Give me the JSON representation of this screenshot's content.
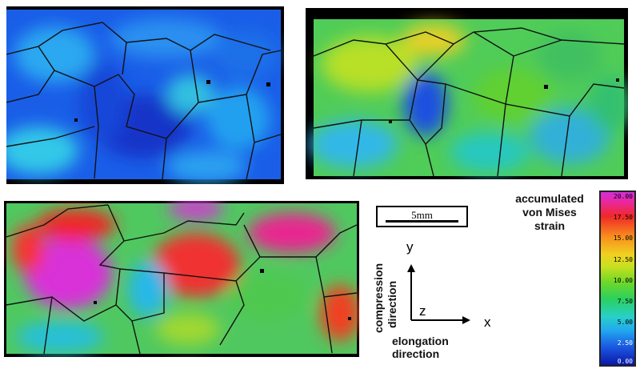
{
  "scale_bar": {
    "label": "5mm"
  },
  "axes": {
    "y_label": "y",
    "z_label": "z",
    "x_label": "x",
    "compression_line1": "compression",
    "compression_line2": "direction",
    "elongation_line1": "elongation",
    "elongation_line2": "direction"
  },
  "colorbar": {
    "title_line1": "accumulated",
    "title_line2": "von Mises",
    "title_line3": "strain",
    "ticks": [
      "20.00",
      "17.50",
      "15.00",
      "12.50",
      "10.00",
      "7.50",
      "5.00",
      "2.50",
      "0.00"
    ],
    "colors": {
      "low": "#0a18a8",
      "mid": "#2ad060",
      "high": "#d030d8"
    }
  },
  "panels": [
    {
      "name": "strain-map-stage-1",
      "dominant_color": "#1e64e6"
    },
    {
      "name": "strain-map-stage-2",
      "dominant_color": "#40d060"
    },
    {
      "name": "strain-map-stage-3",
      "dominant_color": "#e83070"
    }
  ]
}
